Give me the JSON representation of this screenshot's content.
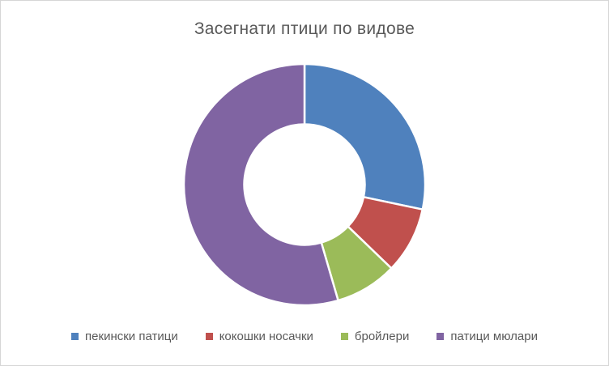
{
  "title": "Засегнати птици по видове",
  "chart_data": {
    "type": "pie",
    "subtype": "donut",
    "title": "Засегнати птици по видове",
    "categories": [
      "пекински патици",
      "кокошки носачки",
      "бройлери",
      "патици мюлари"
    ],
    "values": [
      28.3,
      8.9,
      8.3,
      54.5
    ],
    "unit": "percent_of_total",
    "colors": [
      "#4F81BD",
      "#C0504D",
      "#9BBB59",
      "#8064A2"
    ],
    "slice_angles_deg": [
      102,
      32,
      30,
      196
    ],
    "start_angle_deg": 0,
    "direction": "clockwise",
    "hole_radius_ratio": 0.5,
    "slice_border_color": "#FFFFFF",
    "legend_position": "bottom",
    "title_color": "#595959",
    "legend_text_color": "#595959",
    "canvas_border_color": "#D6D6D6",
    "background_color": "#FFFFFF"
  }
}
